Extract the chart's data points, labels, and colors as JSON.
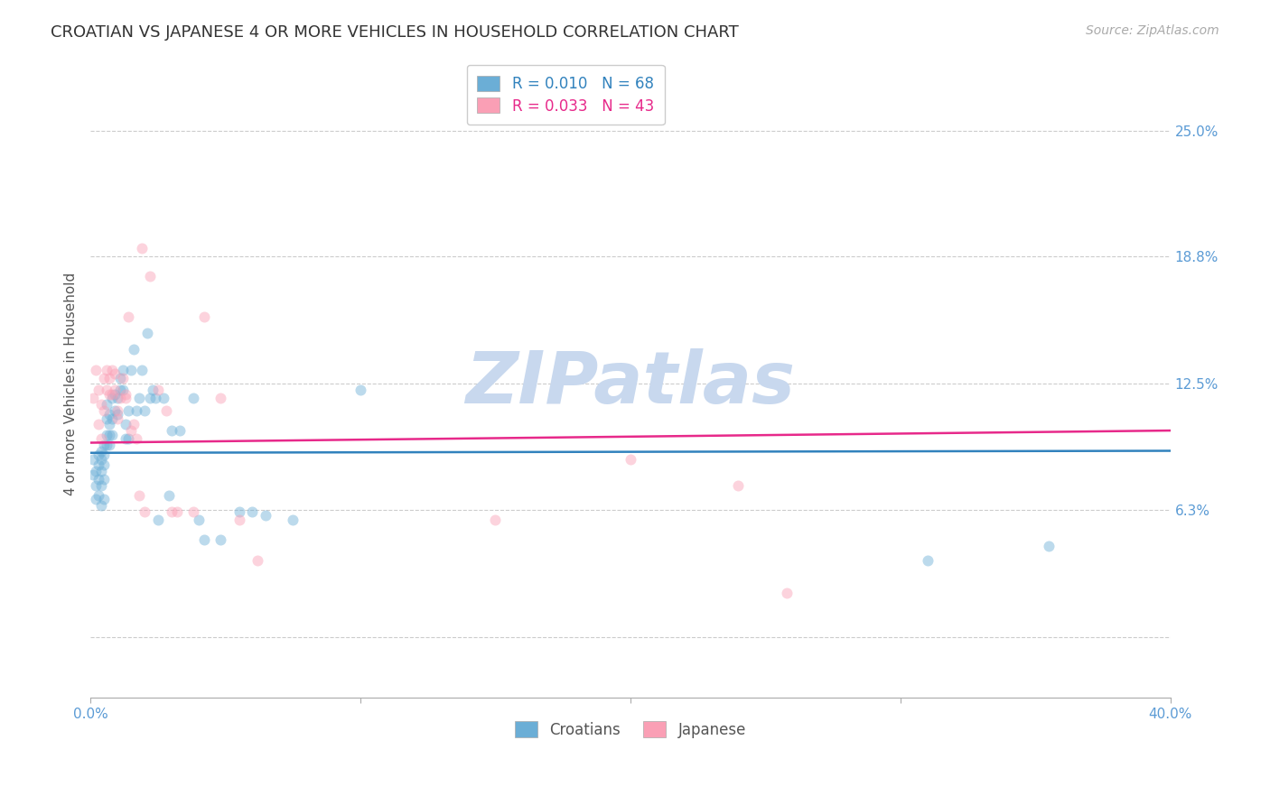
{
  "title": "CROATIAN VS JAPANESE 4 OR MORE VEHICLES IN HOUSEHOLD CORRELATION CHART",
  "source": "Source: ZipAtlas.com",
  "ylabel": "4 or more Vehicles in Household",
  "xlim": [
    0.0,
    0.4
  ],
  "ylim": [
    -0.03,
    0.28
  ],
  "yticks": [
    0.0,
    0.063,
    0.125,
    0.188,
    0.25
  ],
  "ytick_labels": [
    "",
    "6.3%",
    "12.5%",
    "18.8%",
    "25.0%"
  ],
  "xticks": [
    0.0,
    0.1,
    0.2,
    0.3,
    0.4
  ],
  "xtick_labels": [
    "0.0%",
    "",
    "",
    "",
    "40.0%"
  ],
  "croatians_R": 0.01,
  "croatians_N": 68,
  "japanese_R": 0.033,
  "japanese_N": 43,
  "croatian_color": "#6baed6",
  "japanese_color": "#fa9fb5",
  "trendline_croatian_color": "#3182bd",
  "trendline_japanese_color": "#e7298a",
  "background_color": "#ffffff",
  "watermark_text": "ZIPatlas",
  "watermark_color": "#c8d8ee",
  "croatians_x": [
    0.001,
    0.001,
    0.002,
    0.002,
    0.002,
    0.003,
    0.003,
    0.003,
    0.003,
    0.004,
    0.004,
    0.004,
    0.004,
    0.004,
    0.005,
    0.005,
    0.005,
    0.005,
    0.005,
    0.006,
    0.006,
    0.006,
    0.006,
    0.007,
    0.007,
    0.007,
    0.007,
    0.008,
    0.008,
    0.008,
    0.009,
    0.009,
    0.01,
    0.01,
    0.011,
    0.011,
    0.012,
    0.012,
    0.013,
    0.013,
    0.014,
    0.014,
    0.015,
    0.016,
    0.017,
    0.018,
    0.019,
    0.02,
    0.021,
    0.022,
    0.023,
    0.024,
    0.025,
    0.027,
    0.029,
    0.03,
    0.033,
    0.038,
    0.04,
    0.042,
    0.048,
    0.055,
    0.06,
    0.065,
    0.075,
    0.1,
    0.31,
    0.355
  ],
  "croatians_y": [
    0.088,
    0.08,
    0.082,
    0.075,
    0.068,
    0.09,
    0.085,
    0.078,
    0.07,
    0.092,
    0.088,
    0.082,
    0.075,
    0.065,
    0.095,
    0.09,
    0.085,
    0.078,
    0.068,
    0.1,
    0.095,
    0.115,
    0.108,
    0.105,
    0.1,
    0.095,
    0.11,
    0.108,
    0.1,
    0.118,
    0.112,
    0.12,
    0.11,
    0.118,
    0.122,
    0.128,
    0.132,
    0.122,
    0.098,
    0.105,
    0.112,
    0.098,
    0.132,
    0.142,
    0.112,
    0.118,
    0.132,
    0.112,
    0.15,
    0.118,
    0.122,
    0.118,
    0.058,
    0.118,
    0.07,
    0.102,
    0.102,
    0.118,
    0.058,
    0.048,
    0.048,
    0.062,
    0.062,
    0.06,
    0.058,
    0.122,
    0.038,
    0.045
  ],
  "japanese_x": [
    0.001,
    0.002,
    0.003,
    0.003,
    0.004,
    0.004,
    0.005,
    0.005,
    0.006,
    0.006,
    0.007,
    0.007,
    0.008,
    0.008,
    0.009,
    0.009,
    0.01,
    0.01,
    0.011,
    0.012,
    0.013,
    0.013,
    0.014,
    0.015,
    0.016,
    0.017,
    0.018,
    0.019,
    0.02,
    0.022,
    0.025,
    0.028,
    0.03,
    0.032,
    0.038,
    0.042,
    0.048,
    0.055,
    0.062,
    0.15,
    0.2,
    0.24,
    0.258
  ],
  "japanese_y": [
    0.118,
    0.132,
    0.105,
    0.122,
    0.115,
    0.098,
    0.128,
    0.112,
    0.132,
    0.122,
    0.128,
    0.12,
    0.132,
    0.12,
    0.13,
    0.122,
    0.108,
    0.112,
    0.118,
    0.128,
    0.12,
    0.118,
    0.158,
    0.102,
    0.105,
    0.098,
    0.07,
    0.192,
    0.062,
    0.178,
    0.122,
    0.112,
    0.062,
    0.062,
    0.062,
    0.158,
    0.118,
    0.058,
    0.038,
    0.058,
    0.088,
    0.075,
    0.022
  ],
  "title_fontsize": 13,
  "axis_label_fontsize": 11,
  "tick_fontsize": 11,
  "legend_fontsize": 12,
  "source_fontsize": 10,
  "marker_size": 75,
  "marker_alpha": 0.45,
  "trendline_cr_y0": 0.091,
  "trendline_cr_y1": 0.092,
  "trendline_jp_y0": 0.096,
  "trendline_jp_y1": 0.102
}
